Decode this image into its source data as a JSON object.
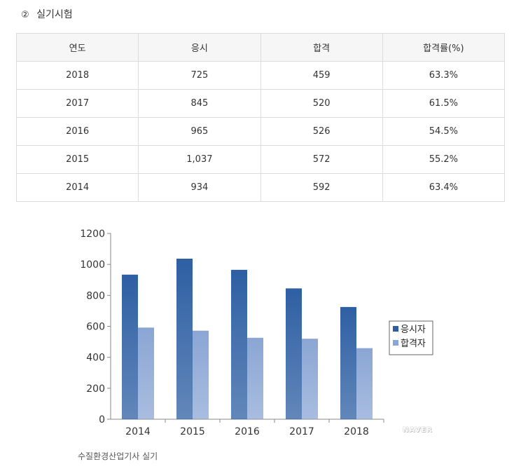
{
  "heading": {
    "number": "②",
    "title": "실기시험"
  },
  "table": {
    "headers": [
      "연도",
      "응시",
      "합격",
      "합격률(%)"
    ],
    "rows": [
      [
        "2018",
        "725",
        "459",
        "63.3%"
      ],
      [
        "2017",
        "845",
        "520",
        "61.5%"
      ],
      [
        "2016",
        "965",
        "526",
        "54.5%"
      ],
      [
        "2015",
        "1,037",
        "572",
        "55.2%"
      ],
      [
        "2014",
        "934",
        "592",
        "63.4%"
      ]
    ]
  },
  "chart_data": {
    "type": "bar",
    "categories": [
      "2014",
      "2015",
      "2016",
      "2017",
      "2018"
    ],
    "series": [
      {
        "name": "응시자",
        "values": [
          934,
          1037,
          965,
          845,
          725
        ],
        "color": "#2e5fa3"
      },
      {
        "name": "합격자",
        "values": [
          592,
          572,
          526,
          520,
          459
        ],
        "color": "#8ba6d4"
      }
    ],
    "ylim": [
      0,
      1200
    ],
    "yticks": [
      "0",
      "200",
      "400",
      "600",
      "800",
      "1000",
      "1200"
    ],
    "legend": "right",
    "grid": false
  },
  "caption": "수질환경산업기사 실기",
  "watermark": "NAVER"
}
